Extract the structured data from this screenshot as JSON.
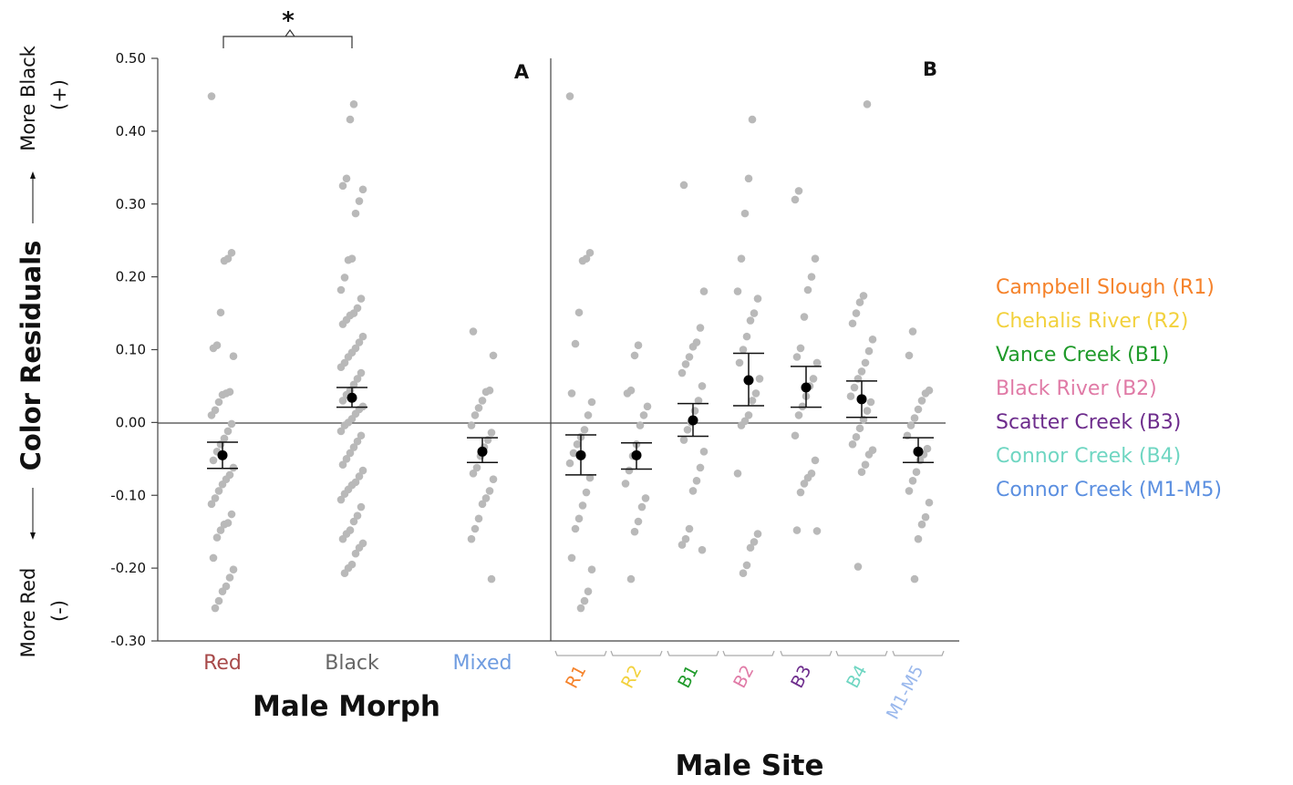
{
  "chart_data": [
    {
      "panel_label": "A",
      "type": "scatter",
      "xlabel": "Male Morph",
      "ylabel": "Color Residuals",
      "ylabel_top": "More Black",
      "ylabel_top_sign": "(+)",
      "ylabel_bottom": "More Red",
      "ylabel_bottom_sign": "(-)",
      "ylim": [
        -0.3,
        0.5
      ],
      "yticks": [
        "0.50",
        "0.40",
        "0.30",
        "0.20",
        "0.10",
        "0.00",
        "-0.10",
        "-0.20",
        "-0.30"
      ],
      "significance": "*",
      "reference_line_y": 0,
      "categories": [
        {
          "label": "Red",
          "color": "#a84a4a",
          "mean": -0.045,
          "se_low": -0.063,
          "se_high": -0.027,
          "points": [
            0.448,
            0.233,
            0.225,
            0.222,
            0.151,
            0.106,
            0.102,
            0.091,
            0.042,
            0.04,
            0.038,
            0.028,
            0.017,
            0.01,
            -0.002,
            -0.012,
            -0.022,
            -0.03,
            -0.04,
            -0.052,
            -0.062,
            -0.072,
            -0.078,
            -0.085,
            -0.094,
            -0.104,
            -0.112,
            -0.126,
            -0.138,
            -0.14,
            -0.148,
            -0.158,
            -0.186,
            -0.202,
            -0.213,
            -0.225,
            -0.232,
            -0.245,
            -0.255
          ]
        },
        {
          "label": "Black",
          "color": "#666666",
          "mean": 0.034,
          "se_low": 0.021,
          "se_high": 0.048,
          "points": [
            0.437,
            0.416,
            0.335,
            0.325,
            0.32,
            0.304,
            0.287,
            0.225,
            0.223,
            0.199,
            0.182,
            0.17,
            0.157,
            0.15,
            0.147,
            0.141,
            0.135,
            0.118,
            0.11,
            0.102,
            0.096,
            0.09,
            0.082,
            0.076,
            0.068,
            0.06,
            0.052,
            0.044,
            0.038,
            0.03,
            0.022,
            0.018,
            0.012,
            0.005,
            0.0,
            -0.004,
            -0.012,
            -0.018,
            -0.026,
            -0.034,
            -0.042,
            -0.05,
            -0.058,
            -0.066,
            -0.074,
            -0.082,
            -0.086,
            -0.092,
            -0.098,
            -0.106,
            -0.116,
            -0.128,
            -0.136,
            -0.148,
            -0.153,
            -0.16,
            -0.166,
            -0.172,
            -0.18,
            -0.195,
            -0.2,
            -0.207
          ]
        },
        {
          "label": "Mixed",
          "color": "#6f9ce0",
          "mean": -0.04,
          "se_low": -0.055,
          "se_high": -0.021,
          "points": [
            0.125,
            0.092,
            0.044,
            0.042,
            0.03,
            0.02,
            0.01,
            -0.004,
            -0.014,
            -0.024,
            -0.034,
            -0.046,
            -0.062,
            -0.07,
            -0.078,
            -0.094,
            -0.104,
            -0.112,
            -0.132,
            -0.146,
            -0.16,
            -0.215
          ]
        }
      ]
    },
    {
      "panel_label": "B",
      "type": "scatter",
      "xlabel": "Male Site",
      "ylim": [
        -0.3,
        0.5
      ],
      "reference_line_y": 0,
      "categories": [
        {
          "label": "R1",
          "color": "#f5822a",
          "mean": -0.045,
          "se_low": -0.072,
          "se_high": -0.017,
          "points": [
            0.448,
            0.233,
            0.225,
            0.222,
            0.151,
            0.108,
            0.04,
            0.028,
            0.01,
            -0.01,
            -0.02,
            -0.03,
            -0.042,
            -0.056,
            -0.076,
            -0.096,
            -0.114,
            -0.132,
            -0.146,
            -0.186,
            -0.202,
            -0.232,
            -0.245,
            -0.255
          ]
        },
        {
          "label": "R2",
          "color": "#f2d13c",
          "mean": -0.045,
          "se_low": -0.064,
          "se_high": -0.028,
          "points": [
            0.106,
            0.092,
            0.044,
            0.04,
            0.022,
            0.01,
            -0.004,
            -0.03,
            -0.046,
            -0.066,
            -0.084,
            -0.104,
            -0.116,
            -0.136,
            -0.15,
            -0.215
          ]
        },
        {
          "label": "B1",
          "color": "#1f9a2a",
          "mean": 0.003,
          "se_low": -0.019,
          "se_high": 0.026,
          "points": [
            0.326,
            0.18,
            0.13,
            0.11,
            0.104,
            0.09,
            0.08,
            0.068,
            0.05,
            0.03,
            0.016,
            0.0,
            -0.01,
            -0.024,
            -0.04,
            -0.062,
            -0.08,
            -0.094,
            -0.146,
            -0.16,
            -0.168,
            -0.175
          ]
        },
        {
          "label": "B2",
          "color": "#e07aa6",
          "mean": 0.058,
          "se_low": 0.023,
          "se_high": 0.095,
          "points": [
            0.416,
            0.335,
            0.287,
            0.225,
            0.18,
            0.17,
            0.15,
            0.14,
            0.118,
            0.1,
            0.082,
            0.06,
            0.04,
            0.03,
            0.01,
            0.002,
            -0.004,
            -0.07,
            -0.153,
            -0.164,
            -0.172,
            -0.196,
            -0.207
          ]
        },
        {
          "label": "B3",
          "color": "#6d2c8c",
          "mean": 0.048,
          "se_low": 0.021,
          "se_high": 0.077,
          "points": [
            0.318,
            0.306,
            0.225,
            0.2,
            0.182,
            0.145,
            0.102,
            0.09,
            0.082,
            0.06,
            0.05,
            0.036,
            0.022,
            0.01,
            -0.018,
            -0.052,
            -0.07,
            -0.076,
            -0.084,
            -0.096,
            -0.148,
            -0.149
          ]
        },
        {
          "label": "B4",
          "color": "#6fd6c2",
          "mean": 0.032,
          "se_low": 0.007,
          "se_high": 0.057,
          "points": [
            0.437,
            0.174,
            0.165,
            0.15,
            0.136,
            0.114,
            0.098,
            0.082,
            0.07,
            0.06,
            0.048,
            0.036,
            0.028,
            0.016,
            0.004,
            -0.008,
            -0.02,
            -0.03,
            -0.038,
            -0.044,
            -0.058,
            -0.068,
            -0.198
          ]
        },
        {
          "label": "M1-M5",
          "color": "#9ab8ec",
          "mean": -0.04,
          "se_low": -0.055,
          "se_high": -0.021,
          "points": [
            0.125,
            0.092,
            0.044,
            0.04,
            0.03,
            0.018,
            0.006,
            -0.004,
            -0.018,
            -0.036,
            -0.044,
            -0.052,
            -0.068,
            -0.08,
            -0.094,
            -0.11,
            -0.13,
            -0.14,
            -0.16,
            -0.215
          ]
        }
      ]
    }
  ],
  "legend": [
    {
      "label": "Campbell Slough (R1)",
      "color": "#f5822a"
    },
    {
      "label": "Chehalis River (R2)",
      "color": "#f2d13c"
    },
    {
      "label": "Vance Creek (B1)",
      "color": "#1f9a2a"
    },
    {
      "label": "Black River (B2)",
      "color": "#e07aa6"
    },
    {
      "label": "Scatter Creek (B3)",
      "color": "#6d2c8c"
    },
    {
      "label": "Connor Creek (B4)",
      "color": "#6fd6c2"
    },
    {
      "label": "Connor Creek (M1-M5)",
      "color": "#5b8fe0"
    }
  ]
}
